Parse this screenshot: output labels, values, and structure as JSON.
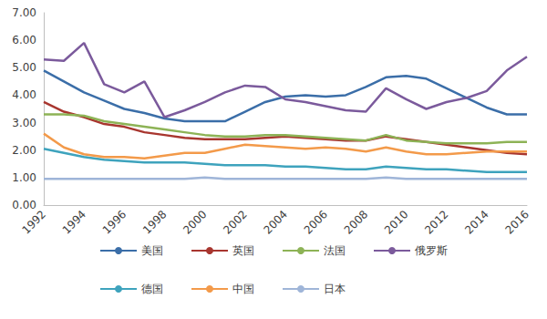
{
  "chart_data": {
    "type": "line",
    "categories": [
      "1992",
      null,
      "1994",
      null,
      "1996",
      null,
      "1998",
      null,
      "2000",
      null,
      "2002",
      null,
      "2004",
      null,
      "2006",
      null,
      "2008",
      null,
      "2010",
      null,
      "2012",
      null,
      "2014",
      null,
      "2016"
    ],
    "series": [
      {
        "name": "美国",
        "color": "#3b6ea8",
        "values": [
          4.9,
          4.5,
          4.1,
          3.8,
          3.5,
          3.35,
          3.15,
          3.05,
          3.05,
          3.05,
          3.4,
          3.75,
          3.95,
          4.0,
          3.95,
          4.0,
          4.3,
          4.65,
          4.7,
          4.6,
          4.25,
          3.9,
          3.55,
          3.3,
          3.3
        ]
      },
      {
        "name": "英国",
        "color": "#a8362f",
        "values": [
          3.75,
          3.4,
          3.2,
          2.95,
          2.85,
          2.65,
          2.55,
          2.45,
          2.4,
          2.4,
          2.4,
          2.45,
          2.5,
          2.45,
          2.4,
          2.35,
          2.35,
          2.5,
          2.4,
          2.3,
          2.2,
          2.1,
          2.0,
          1.9,
          1.85
        ]
      },
      {
        "name": "法国",
        "color": "#8db356",
        "values": [
          3.3,
          3.3,
          3.25,
          3.05,
          2.95,
          2.85,
          2.75,
          2.65,
          2.55,
          2.5,
          2.5,
          2.55,
          2.55,
          2.5,
          2.45,
          2.4,
          2.35,
          2.55,
          2.35,
          2.3,
          2.25,
          2.25,
          2.25,
          2.3,
          2.3
        ]
      },
      {
        "name": "俄罗斯",
        "color": "#7b5a9c",
        "values": [
          5.3,
          5.25,
          5.9,
          4.4,
          4.1,
          4.5,
          3.2,
          3.45,
          3.75,
          4.1,
          4.35,
          4.3,
          3.85,
          3.75,
          3.6,
          3.45,
          3.4,
          4.25,
          3.85,
          3.5,
          3.75,
          3.9,
          4.15,
          4.9,
          5.4
        ]
      },
      {
        "name": "德国",
        "color": "#3ea3bd",
        "values": [
          2.05,
          1.9,
          1.75,
          1.65,
          1.6,
          1.55,
          1.55,
          1.55,
          1.5,
          1.45,
          1.45,
          1.45,
          1.4,
          1.4,
          1.35,
          1.3,
          1.3,
          1.4,
          1.35,
          1.3,
          1.3,
          1.25,
          1.2,
          1.2,
          1.2
        ]
      },
      {
        "name": "中国",
        "color": "#f39a4a",
        "values": [
          2.6,
          2.1,
          1.85,
          1.75,
          1.75,
          1.7,
          1.8,
          1.9,
          1.9,
          2.05,
          2.2,
          2.15,
          2.1,
          2.05,
          2.1,
          2.05,
          1.95,
          2.1,
          1.95,
          1.85,
          1.85,
          1.9,
          1.95,
          1.95,
          1.95
        ]
      },
      {
        "name": "日本",
        "color": "#9fb5d8",
        "values": [
          0.95,
          0.95,
          0.95,
          0.95,
          0.95,
          0.95,
          0.95,
          0.95,
          1.0,
          0.95,
          0.95,
          0.95,
          0.95,
          0.95,
          0.95,
          0.95,
          0.95,
          1.0,
          0.95,
          0.95,
          0.95,
          0.95,
          0.95,
          0.95,
          0.95
        ]
      }
    ],
    "ylim": [
      0,
      7
    ],
    "yticks": [
      {
        "value": 0,
        "label": "0.00"
      },
      {
        "value": 1,
        "label": "1.00"
      },
      {
        "value": 2,
        "label": "2.00"
      },
      {
        "value": 3,
        "label": "3.00"
      },
      {
        "value": 4,
        "label": "4.00"
      },
      {
        "value": 5,
        "label": "5.00"
      },
      {
        "value": 6,
        "label": "6.00"
      },
      {
        "value": 7,
        "label": "7.00"
      }
    ],
    "grid": false,
    "legend": "bottom"
  }
}
